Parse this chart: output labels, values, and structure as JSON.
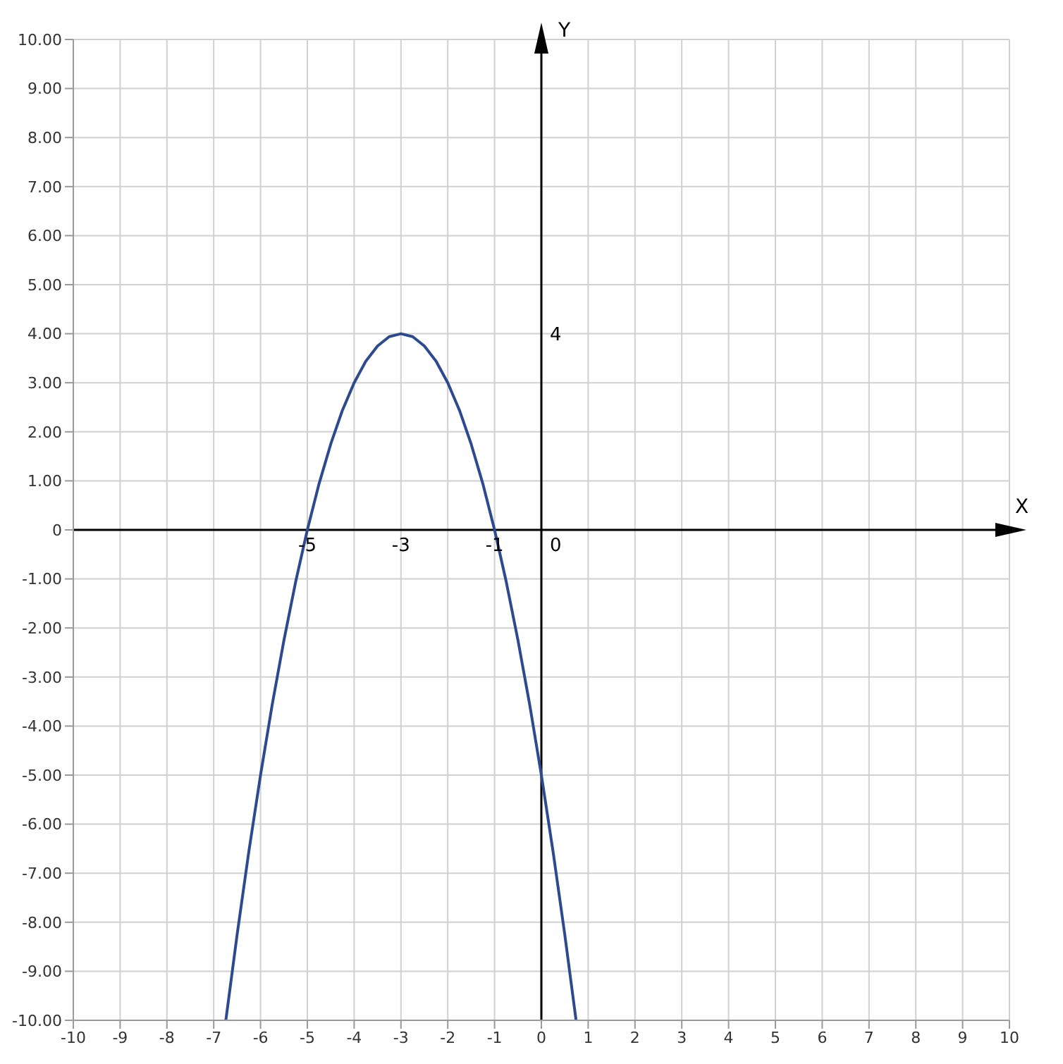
{
  "chart_data": {
    "type": "line",
    "xlabel": "X",
    "ylabel": "Y",
    "x": [
      -6.74,
      -6.5,
      -6.25,
      -6,
      -5.75,
      -5.5,
      -5.25,
      -5,
      -4.75,
      -4.5,
      -4.25,
      -4,
      -3.75,
      -3.5,
      -3.25,
      -3,
      -2.75,
      -2.5,
      -2.25,
      -2,
      -1.75,
      -1.5,
      -1.25,
      -1,
      -0.75,
      -0.5,
      -0.25,
      0,
      0.25,
      0.5,
      0.74
    ],
    "series": [
      {
        "color": "#2e4a8f",
        "values": [
          -9.99,
          -8.25,
          -6.56,
          -5,
          -3.56,
          -2.25,
          -1.06,
          0,
          0.94,
          1.75,
          2.44,
          3,
          3.44,
          3.75,
          3.94,
          4,
          3.94,
          3.75,
          3.44,
          3,
          2.44,
          1.75,
          0.94,
          0,
          -1.06,
          -2.25,
          -3.56,
          -5,
          -6.56,
          -8.25,
          -9.99
        ]
      }
    ],
    "xlim": [
      -10,
      10
    ],
    "ylim": [
      -10,
      10
    ],
    "xticks": [
      -10,
      -9,
      -8,
      -7,
      -6,
      -5,
      -4,
      -3,
      -2,
      -1,
      0,
      1,
      2,
      3,
      4,
      5,
      6,
      7,
      8,
      9,
      10
    ],
    "yticks": [
      {
        "value": -10,
        "label": "-10.00"
      },
      {
        "value": -9,
        "label": "-9.00"
      },
      {
        "value": -8,
        "label": "-8.00"
      },
      {
        "value": -7,
        "label": "-7.00"
      },
      {
        "value": -6,
        "label": "-6.00"
      },
      {
        "value": -5,
        "label": "-5.00"
      },
      {
        "value": -4,
        "label": "-4.00"
      },
      {
        "value": -3,
        "label": "-3.00"
      },
      {
        "value": -2,
        "label": "-2.00"
      },
      {
        "value": -1,
        "label": "-1.00"
      },
      {
        "value": 0,
        "label": "0"
      },
      {
        "value": 1,
        "label": "1.00"
      },
      {
        "value": 2,
        "label": "2.00"
      },
      {
        "value": 3,
        "label": "3.00"
      },
      {
        "value": 4,
        "label": "4.00"
      },
      {
        "value": 5,
        "label": "5.00"
      },
      {
        "value": 6,
        "label": "6.00"
      },
      {
        "value": 7,
        "label": "7.00"
      },
      {
        "value": 8,
        "label": "8.00"
      },
      {
        "value": 9,
        "label": "9.00"
      },
      {
        "value": 10,
        "label": "10.00"
      }
    ],
    "annotations": [
      {
        "text": "-5",
        "x": -5,
        "y": 0
      },
      "-3",
      {
        "text": "-1",
        "x": -1,
        "y": 0
      },
      "0",
      "4"
    ],
    "grid": true,
    "marker": "none",
    "line_style": "solid",
    "legend": false
  }
}
